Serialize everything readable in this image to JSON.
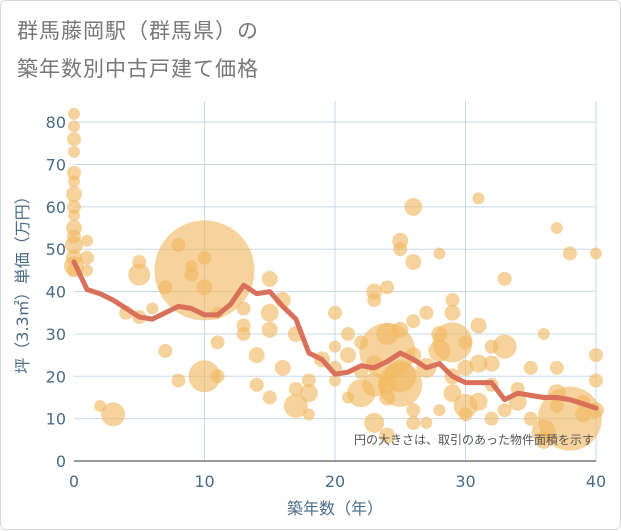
{
  "title_line1": "群馬藤岡駅（群馬県）の",
  "title_line2": "築年数別中古戸建て価格",
  "chart_data": {
    "type": "scatter",
    "title": "群馬藤岡駅（群馬県）の築年数別中古戸建て価格",
    "xlabel": "築年数（年）",
    "ylabel": "坪（3.3㎡）単価（万円）",
    "xlim": [
      0,
      40
    ],
    "ylim": [
      0,
      85
    ],
    "xticks": [
      0,
      10,
      20,
      30,
      40
    ],
    "yticks": [
      0,
      10,
      20,
      30,
      40,
      50,
      60,
      70,
      80
    ],
    "grid": true,
    "note": "円の大きさは、取引のあった物件面積を示す",
    "colors": {
      "bubble": "#f0b860",
      "line": "#d9705a",
      "grid": "#c8d8e8",
      "axis": "#4a6b86"
    },
    "series": [
      {
        "type": "bubble",
        "points": [
          {
            "x": 0,
            "y": 82,
            "s": 6
          },
          {
            "x": 0,
            "y": 79,
            "s": 6
          },
          {
            "x": 0,
            "y": 76,
            "s": 7
          },
          {
            "x": 0,
            "y": 73,
            "s": 6
          },
          {
            "x": 0,
            "y": 68,
            "s": 7
          },
          {
            "x": 0,
            "y": 66,
            "s": 6
          },
          {
            "x": 0,
            "y": 63,
            "s": 8
          },
          {
            "x": 0,
            "y": 60,
            "s": 7
          },
          {
            "x": 0,
            "y": 58,
            "s": 6
          },
          {
            "x": 0,
            "y": 55,
            "s": 8
          },
          {
            "x": 0,
            "y": 53,
            "s": 7
          },
          {
            "x": 0,
            "y": 51,
            "s": 9
          },
          {
            "x": 0,
            "y": 48,
            "s": 8
          },
          {
            "x": 0,
            "y": 46,
            "s": 10
          },
          {
            "x": 0,
            "y": 45,
            "s": 7
          },
          {
            "x": 1,
            "y": 52,
            "s": 6
          },
          {
            "x": 1,
            "y": 48,
            "s": 7
          },
          {
            "x": 1,
            "y": 45,
            "s": 6
          },
          {
            "x": 2,
            "y": 13,
            "s": 6
          },
          {
            "x": 3,
            "y": 11,
            "s": 12
          },
          {
            "x": 4,
            "y": 35,
            "s": 7
          },
          {
            "x": 5,
            "y": 47,
            "s": 7
          },
          {
            "x": 5,
            "y": 44,
            "s": 11
          },
          {
            "x": 5,
            "y": 34,
            "s": 7
          },
          {
            "x": 6,
            "y": 36,
            "s": 6
          },
          {
            "x": 7,
            "y": 41,
            "s": 7
          },
          {
            "x": 7,
            "y": 26,
            "s": 7
          },
          {
            "x": 8,
            "y": 51,
            "s": 7
          },
          {
            "x": 8,
            "y": 19,
            "s": 7
          },
          {
            "x": 9,
            "y": 46,
            "s": 6
          },
          {
            "x": 9,
            "y": 44,
            "s": 7
          },
          {
            "x": 10,
            "y": 45,
            "s": 50
          },
          {
            "x": 10,
            "y": 48,
            "s": 7
          },
          {
            "x": 10,
            "y": 41,
            "s": 8
          },
          {
            "x": 10,
            "y": 20,
            "s": 16
          },
          {
            "x": 11,
            "y": 28,
            "s": 7
          },
          {
            "x": 11,
            "y": 20,
            "s": 7
          },
          {
            "x": 11,
            "y": 35,
            "s": 6
          },
          {
            "x": 13,
            "y": 36,
            "s": 7
          },
          {
            "x": 13,
            "y": 32,
            "s": 7
          },
          {
            "x": 13,
            "y": 30,
            "s": 7
          },
          {
            "x": 14,
            "y": 25,
            "s": 8
          },
          {
            "x": 14,
            "y": 18,
            "s": 7
          },
          {
            "x": 15,
            "y": 43,
            "s": 8
          },
          {
            "x": 15,
            "y": 35,
            "s": 9
          },
          {
            "x": 15,
            "y": 31,
            "s": 8
          },
          {
            "x": 15,
            "y": 15,
            "s": 7
          },
          {
            "x": 16,
            "y": 38,
            "s": 8
          },
          {
            "x": 16,
            "y": 22,
            "s": 8
          },
          {
            "x": 17,
            "y": 30,
            "s": 8
          },
          {
            "x": 17,
            "y": 13,
            "s": 12
          },
          {
            "x": 17,
            "y": 17,
            "s": 7
          },
          {
            "x": 18,
            "y": 19,
            "s": 7
          },
          {
            "x": 18,
            "y": 16,
            "s": 9
          },
          {
            "x": 18,
            "y": 11,
            "s": 6
          },
          {
            "x": 19,
            "y": 24,
            "s": 8
          },
          {
            "x": 20,
            "y": 35,
            "s": 7
          },
          {
            "x": 20,
            "y": 27,
            "s": 6
          },
          {
            "x": 20,
            "y": 22,
            "s": 7
          },
          {
            "x": 20,
            "y": 19,
            "s": 6
          },
          {
            "x": 21,
            "y": 30,
            "s": 7
          },
          {
            "x": 21,
            "y": 25,
            "s": 8
          },
          {
            "x": 21,
            "y": 15,
            "s": 6
          },
          {
            "x": 22,
            "y": 28,
            "s": 7
          },
          {
            "x": 22,
            "y": 21,
            "s": 7
          },
          {
            "x": 22,
            "y": 16,
            "s": 14
          },
          {
            "x": 23,
            "y": 40,
            "s": 8
          },
          {
            "x": 23,
            "y": 38,
            "s": 7
          },
          {
            "x": 23,
            "y": 23,
            "s": 8
          },
          {
            "x": 23,
            "y": 18,
            "s": 12
          },
          {
            "x": 23,
            "y": 9,
            "s": 10
          },
          {
            "x": 24,
            "y": 41,
            "s": 7
          },
          {
            "x": 24,
            "y": 30,
            "s": 11
          },
          {
            "x": 24,
            "y": 26,
            "s": 28
          },
          {
            "x": 24,
            "y": 18,
            "s": 9
          },
          {
            "x": 24,
            "y": 15,
            "s": 8
          },
          {
            "x": 24,
            "y": 6,
            "s": 8
          },
          {
            "x": 25,
            "y": 52,
            "s": 8
          },
          {
            "x": 25,
            "y": 50,
            "s": 7
          },
          {
            "x": 25,
            "y": 31,
            "s": 8
          },
          {
            "x": 25,
            "y": 20,
            "s": 16
          },
          {
            "x": 25,
            "y": 18,
            "s": 22
          },
          {
            "x": 26,
            "y": 60,
            "s": 9
          },
          {
            "x": 26,
            "y": 47,
            "s": 8
          },
          {
            "x": 26,
            "y": 33,
            "s": 7
          },
          {
            "x": 26,
            "y": 25,
            "s": 8
          },
          {
            "x": 26,
            "y": 12,
            "s": 7
          },
          {
            "x": 26,
            "y": 9,
            "s": 7
          },
          {
            "x": 27,
            "y": 35,
            "s": 7
          },
          {
            "x": 27,
            "y": 22,
            "s": 10
          },
          {
            "x": 27,
            "y": 9,
            "s": 6
          },
          {
            "x": 28,
            "y": 49,
            "s": 6
          },
          {
            "x": 28,
            "y": 30,
            "s": 8
          },
          {
            "x": 28,
            "y": 26,
            "s": 11
          },
          {
            "x": 28,
            "y": 12,
            "s": 6
          },
          {
            "x": 29,
            "y": 38,
            "s": 7
          },
          {
            "x": 29,
            "y": 35,
            "s": 8
          },
          {
            "x": 29,
            "y": 28,
            "s": 20
          },
          {
            "x": 29,
            "y": 20,
            "s": 8
          },
          {
            "x": 29,
            "y": 16,
            "s": 9
          },
          {
            "x": 30,
            "y": 28,
            "s": 7
          },
          {
            "x": 30,
            "y": 22,
            "s": 8
          },
          {
            "x": 30,
            "y": 13,
            "s": 12
          },
          {
            "x": 30,
            "y": 11,
            "s": 7
          },
          {
            "x": 31,
            "y": 62,
            "s": 6
          },
          {
            "x": 31,
            "y": 32,
            "s": 8
          },
          {
            "x": 31,
            "y": 23,
            "s": 9
          },
          {
            "x": 31,
            "y": 14,
            "s": 9
          },
          {
            "x": 32,
            "y": 27,
            "s": 7
          },
          {
            "x": 32,
            "y": 23,
            "s": 8
          },
          {
            "x": 32,
            "y": 18,
            "s": 7
          },
          {
            "x": 32,
            "y": 10,
            "s": 7
          },
          {
            "x": 33,
            "y": 43,
            "s": 7
          },
          {
            "x": 33,
            "y": 27,
            "s": 12
          },
          {
            "x": 33,
            "y": 12,
            "s": 7
          },
          {
            "x": 34,
            "y": 17,
            "s": 7
          },
          {
            "x": 34,
            "y": 14,
            "s": 9
          },
          {
            "x": 35,
            "y": 22,
            "s": 7
          },
          {
            "x": 35,
            "y": 10,
            "s": 7
          },
          {
            "x": 36,
            "y": 30,
            "s": 6
          },
          {
            "x": 36,
            "y": 7,
            "s": 12
          },
          {
            "x": 36,
            "y": 5,
            "s": 9
          },
          {
            "x": 37,
            "y": 55,
            "s": 6
          },
          {
            "x": 37,
            "y": 22,
            "s": 7
          },
          {
            "x": 37,
            "y": 16,
            "s": 9
          },
          {
            "x": 37,
            "y": 13,
            "s": 7
          },
          {
            "x": 38,
            "y": 49,
            "s": 7
          },
          {
            "x": 38,
            "y": 10,
            "s": 32
          },
          {
            "x": 39,
            "y": 14,
            "s": 7
          },
          {
            "x": 39,
            "y": 11,
            "s": 8
          },
          {
            "x": 40,
            "y": 49,
            "s": 6
          },
          {
            "x": 40,
            "y": 25,
            "s": 7
          },
          {
            "x": 40,
            "y": 19,
            "s": 7
          },
          {
            "x": 40,
            "y": 12,
            "s": 8
          }
        ]
      },
      {
        "type": "line",
        "x": [
          0,
          1,
          2,
          3,
          4,
          5,
          6,
          7,
          8,
          9,
          10,
          11,
          12,
          13,
          14,
          15,
          16,
          17,
          18,
          19,
          20,
          21,
          22,
          23,
          24,
          25,
          26,
          27,
          28,
          29,
          30,
          31,
          32,
          33,
          34,
          35,
          36,
          37,
          38,
          39,
          40
        ],
        "y": [
          47,
          40.5,
          39.5,
          38,
          36,
          34,
          33.5,
          35,
          36.5,
          36,
          34.5,
          34.5,
          37,
          41.5,
          39.5,
          40,
          36.5,
          33.5,
          25.5,
          24,
          20.5,
          21,
          22.5,
          22,
          23.5,
          25.5,
          24,
          22,
          23,
          20,
          18.5,
          18.5,
          18.5,
          14.5,
          16,
          15.5,
          15,
          15,
          14.5,
          13.5,
          12.5
        ]
      }
    ]
  }
}
